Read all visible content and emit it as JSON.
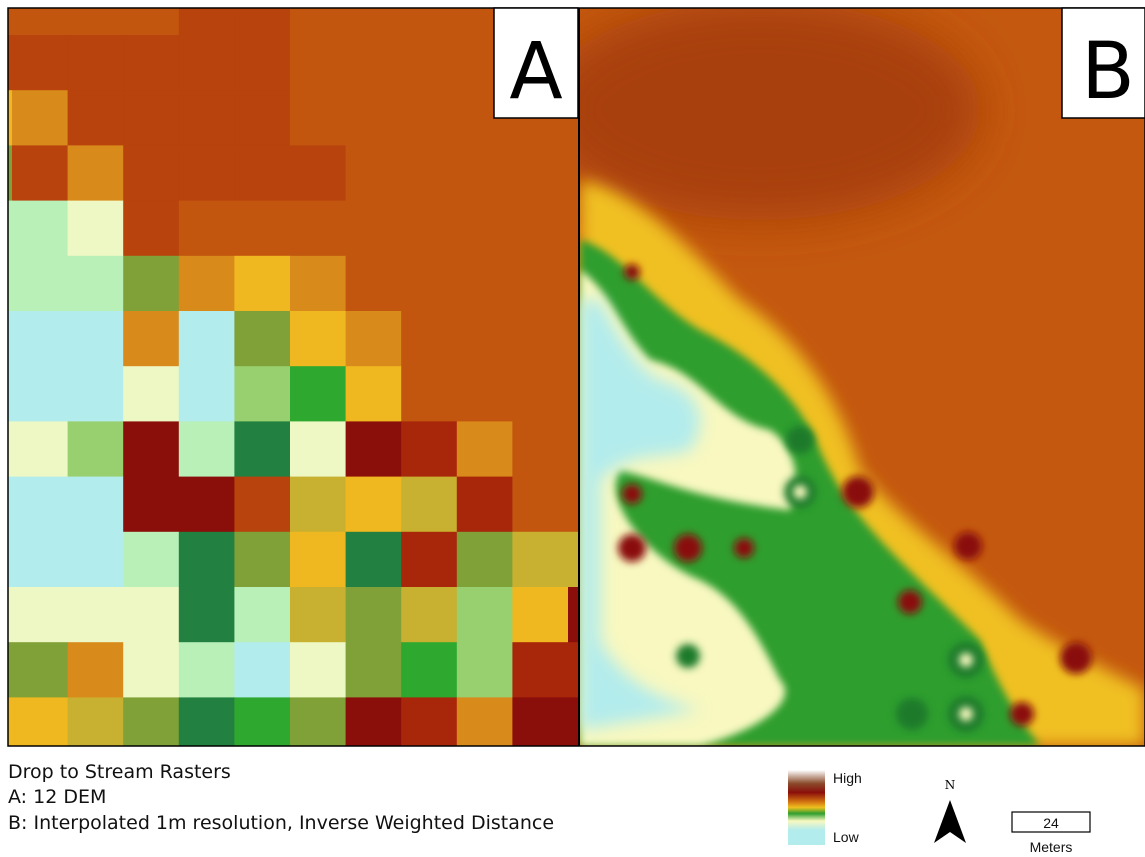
{
  "panels": [
    {
      "label": "A"
    },
    {
      "label": "B"
    }
  ],
  "caption": {
    "title": "Drop to Stream Rasters",
    "lines": [
      "A: 12 DEM",
      "B: Interpolated 1m resolution, Inverse Weighted Distance"
    ]
  },
  "legend": {
    "high": "High",
    "low": "Low"
  },
  "north_arrow": {
    "label": "N"
  },
  "scale_bar": {
    "value": 24,
    "unit": "Meters"
  }
}
